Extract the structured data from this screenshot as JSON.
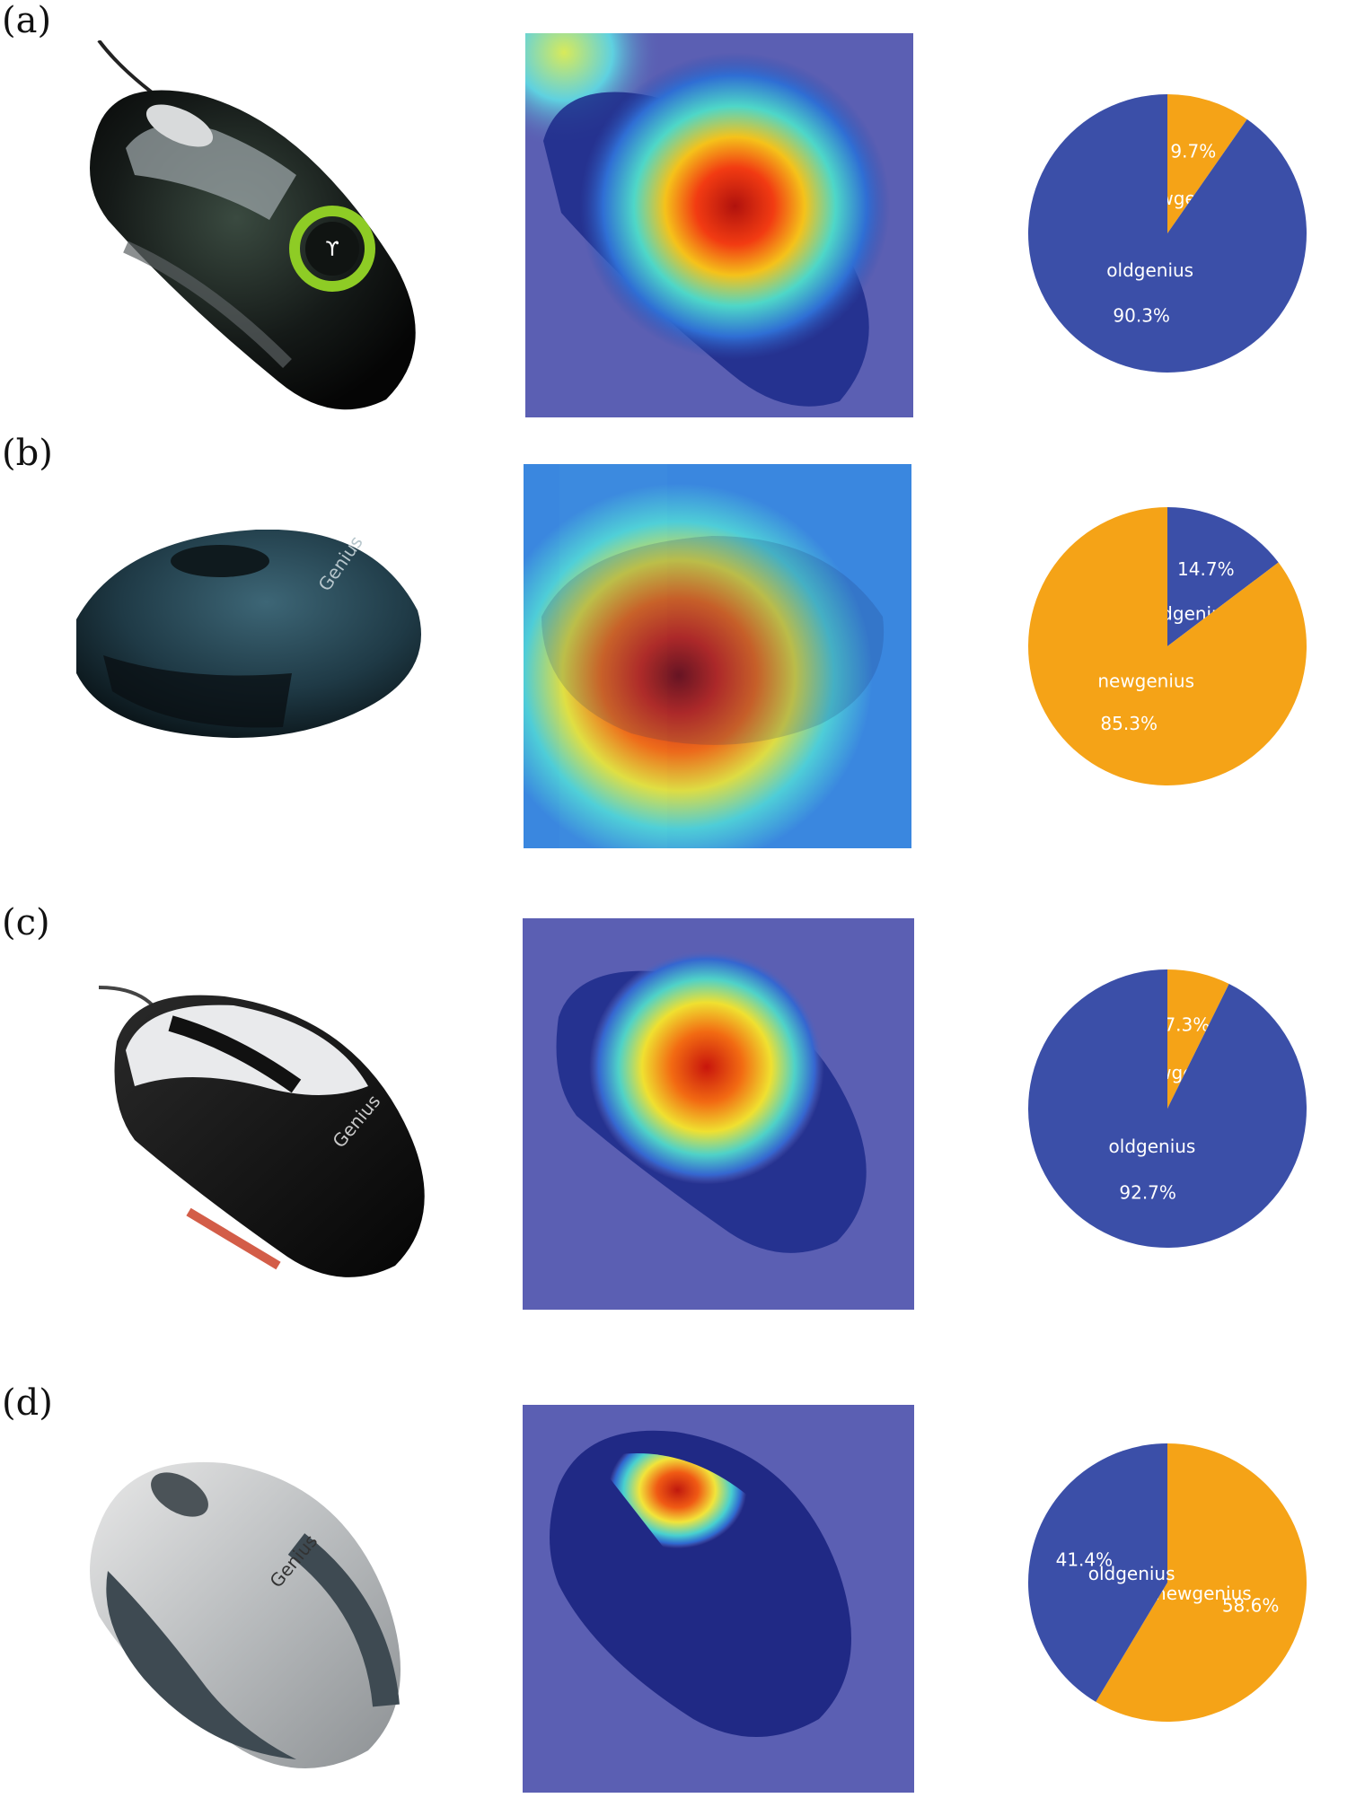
{
  "colors": {
    "newgenius": "#f5a317",
    "oldgenius": "#3b4fa8",
    "heat_bg": "#5b5fb3"
  },
  "chart_data": [
    {
      "type": "pie",
      "panel": "(a)",
      "slices": [
        {
          "label": "newgenius",
          "value": 9.7,
          "pct": "9.7%"
        },
        {
          "label": "oldgenius",
          "value": 90.3,
          "pct": "90.3%"
        }
      ]
    },
    {
      "type": "pie",
      "panel": "(b)",
      "slices": [
        {
          "label": "oldgenius",
          "value": 14.7,
          "pct": "14.7%"
        },
        {
          "label": "newgenius",
          "value": 85.3,
          "pct": "85.3%"
        }
      ]
    },
    {
      "type": "pie",
      "panel": "(c)",
      "slices": [
        {
          "label": "newgenius",
          "value": 7.3,
          "pct": "7.3%"
        },
        {
          "label": "oldgenius",
          "value": 92.7,
          "pct": "92.7%"
        }
      ]
    },
    {
      "type": "pie",
      "panel": "(d)",
      "slices": [
        {
          "label": "newgenius",
          "value": 58.6,
          "pct": "58.6%"
        },
        {
          "label": "oldgenius",
          "value": 41.4,
          "pct": "41.4%"
        }
      ]
    }
  ],
  "panels": [
    {
      "label": "(a)",
      "mouse": "black mouse with green-ringed logo",
      "heatmap": "Grad-CAM heatmap (a)"
    },
    {
      "label": "(b)",
      "mouse": "dark teal mouse",
      "heatmap": "Grad-CAM heatmap (b)"
    },
    {
      "label": "(c)",
      "mouse": "black and white mouse",
      "heatmap": "Grad-CAM heatmap (c)"
    },
    {
      "label": "(d)",
      "mouse": "silver mouse",
      "heatmap": "Grad-CAM heatmap (d)"
    }
  ]
}
